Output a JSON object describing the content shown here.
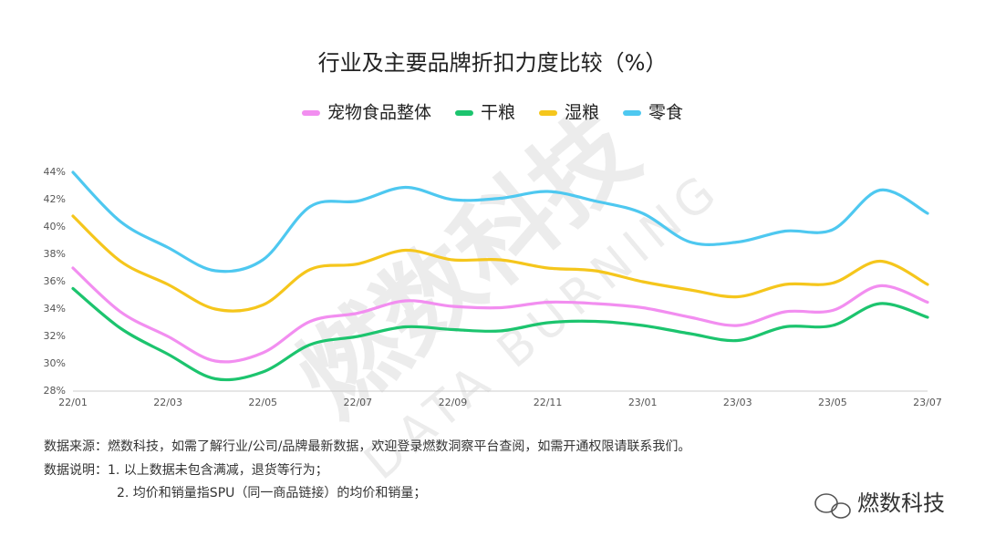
{
  "chart_data": {
    "type": "line",
    "title": "行业及主要品牌折扣力度比较（%）",
    "categories": [
      "22/01",
      null,
      "22/03",
      null,
      "22/05",
      null,
      "22/07",
      null,
      "22/09",
      null,
      "22/11",
      null,
      "23/01",
      null,
      "23/03",
      null,
      "23/05",
      null,
      "23/07"
    ],
    "series": [
      {
        "name": "宠物食品整体",
        "color": "#f28ef0",
        "values": [
          37.0,
          33.8,
          32.0,
          30.2,
          30.8,
          33.1,
          33.7,
          34.6,
          34.2,
          34.1,
          34.5,
          34.4,
          34.1,
          33.4,
          32.8,
          33.8,
          33.9,
          35.7,
          34.5
        ]
      },
      {
        "name": "干粮",
        "color": "#1cc46e",
        "values": [
          35.5,
          32.6,
          30.7,
          28.9,
          29.4,
          31.4,
          32.0,
          32.7,
          32.5,
          32.4,
          33.0,
          33.1,
          32.8,
          32.2,
          31.7,
          32.7,
          32.8,
          34.4,
          33.4
        ]
      },
      {
        "name": "湿粮",
        "color": "#f5c61c",
        "values": [
          40.8,
          37.5,
          35.8,
          34.0,
          34.3,
          36.9,
          37.3,
          38.3,
          37.6,
          37.6,
          37.0,
          36.8,
          36.0,
          35.4,
          34.9,
          35.8,
          35.9,
          37.5,
          35.8
        ]
      },
      {
        "name": "零食",
        "color": "#4ec8f0",
        "values": [
          44.0,
          40.4,
          38.5,
          36.8,
          37.6,
          41.5,
          41.9,
          42.9,
          42.0,
          42.1,
          42.6,
          41.9,
          41.0,
          38.9,
          38.9,
          39.7,
          39.8,
          42.7,
          41.0
        ]
      }
    ],
    "ylim": [
      28,
      44
    ],
    "yticks": [
      {
        "value": 28,
        "label": "28%"
      },
      {
        "value": 30,
        "label": "30%"
      },
      {
        "value": 32,
        "label": "32%"
      },
      {
        "value": 34,
        "label": "34%"
      },
      {
        "value": 36,
        "label": "36%"
      },
      {
        "value": 38,
        "label": "38%"
      },
      {
        "value": 40,
        "label": "40%"
      },
      {
        "value": 42,
        "label": "42%"
      },
      {
        "value": 44,
        "label": "44%"
      }
    ],
    "grid": false,
    "legend": "top",
    "notes": [
      "数据来源：燃数科技，如需了解行业/公司/品牌最新数据，欢迎登录燃数洞察平台查阅，如需开通权限请联系我们。",
      "数据说明：1. 以上数据未包含满减，退货等行为；",
      "2. 均价和销量指SPU（同一商品链接）的均价和销量；"
    ],
    "watermark": [
      "燃数科技",
      "DATA BURNING"
    ],
    "brand": "燃数科技"
  }
}
